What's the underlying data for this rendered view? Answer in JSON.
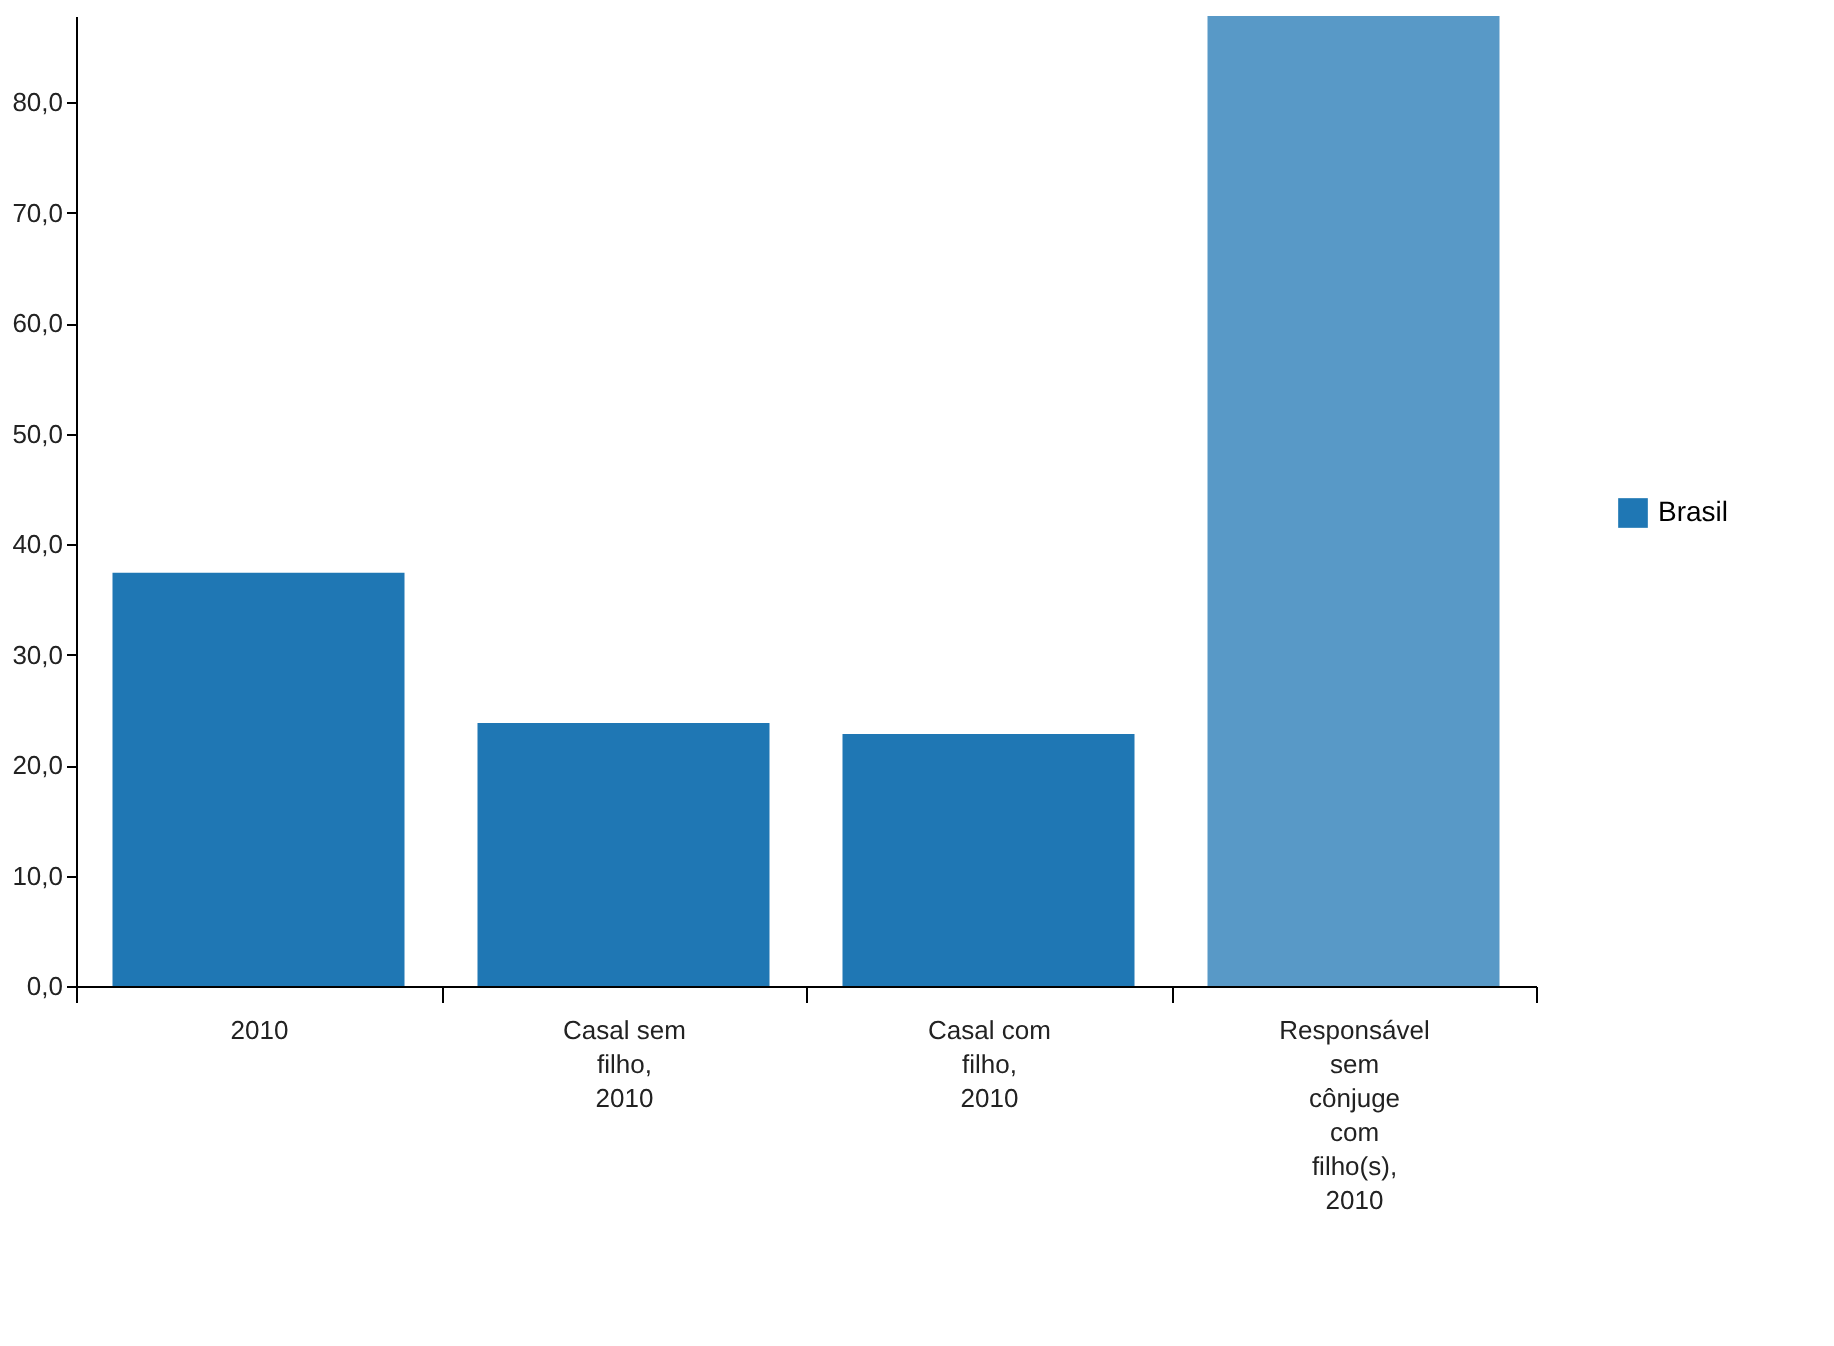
{
  "chart_data": {
    "type": "bar",
    "categories": [
      "2010",
      "Casal sem filho, 2010",
      "Casal com filho, 2010",
      "Responsável sem cônjuge com filho(s), 2010"
    ],
    "series": [
      {
        "name": "Brasil",
        "color": "#1f77b4",
        "colors": [
          "#1f77b4",
          "#1f77b4",
          "#1f77b4",
          "#5899c7"
        ],
        "values": [
          37.4,
          23.8,
          22.8,
          87.8
        ]
      }
    ],
    "ylim": [
      0,
      87.8
    ],
    "yticks": [
      {
        "value": 0,
        "label": "0,0"
      },
      {
        "value": 10,
        "label": "10,0"
      },
      {
        "value": 20,
        "label": "20,0"
      },
      {
        "value": 30,
        "label": "30,0"
      },
      {
        "value": 40,
        "label": "40,0"
      },
      {
        "value": 50,
        "label": "50,0"
      },
      {
        "value": 60,
        "label": "60,0"
      },
      {
        "value": 70,
        "label": "70,0"
      },
      {
        "value": 80,
        "label": "80,0"
      }
    ],
    "grid": false,
    "legend": "right"
  }
}
